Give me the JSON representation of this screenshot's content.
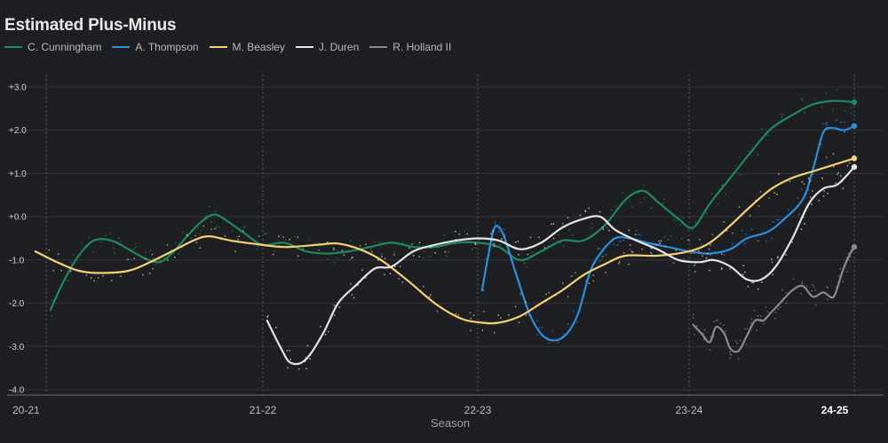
{
  "chart_data": {
    "type": "line",
    "title": "Estimated Plus-Minus",
    "xlabel": "Season",
    "ylabel": "",
    "ylim": [
      -4.0,
      3.0
    ],
    "xlim": [
      0,
      4
    ],
    "y_ticks": [
      "+3.0",
      "+2.0",
      "+1.0",
      "+0.0",
      "-1.0",
      "-2.0",
      "-3.0",
      "-4.0"
    ],
    "y_tick_values": [
      3,
      2,
      1,
      0,
      -1,
      -2,
      -3,
      -4
    ],
    "x_ticks": [
      {
        "label": "20-21",
        "value": 0
      },
      {
        "label": "21-22",
        "value": 1
      },
      {
        "label": "22-23",
        "value": 2
      },
      {
        "label": "23-24",
        "value": 3
      },
      {
        "label": "24-25",
        "value": 3.8,
        "current": true
      }
    ],
    "season_dividers": [
      0,
      1,
      2,
      3,
      3.8
    ],
    "grid": true,
    "legend_position": "top-left",
    "series": [
      {
        "name": "C. Cunningham",
        "color": "#1e8a5e",
        "points": [
          [
            0.02,
            -2.15
          ],
          [
            0.08,
            -1.5
          ],
          [
            0.15,
            -0.9
          ],
          [
            0.22,
            -0.55
          ],
          [
            0.3,
            -0.55
          ],
          [
            0.38,
            -0.75
          ],
          [
            0.45,
            -0.95
          ],
          [
            0.52,
            -1.05
          ],
          [
            0.58,
            -0.85
          ],
          [
            0.65,
            -0.45
          ],
          [
            0.72,
            -0.1
          ],
          [
            0.78,
            0.05
          ],
          [
            0.85,
            -0.15
          ],
          [
            0.92,
            -0.4
          ],
          [
            1.0,
            -0.65
          ],
          [
            1.1,
            -0.6
          ],
          [
            1.2,
            -0.8
          ],
          [
            1.3,
            -0.85
          ],
          [
            1.4,
            -0.8
          ],
          [
            1.5,
            -0.7
          ],
          [
            1.6,
            -0.6
          ],
          [
            1.7,
            -0.7
          ],
          [
            1.8,
            -0.7
          ],
          [
            1.9,
            -0.6
          ],
          [
            2.0,
            -0.6
          ],
          [
            2.1,
            -0.7
          ],
          [
            2.2,
            -1.0
          ],
          [
            2.3,
            -0.8
          ],
          [
            2.4,
            -0.55
          ],
          [
            2.5,
            -0.55
          ],
          [
            2.6,
            -0.2
          ],
          [
            2.7,
            0.4
          ],
          [
            2.78,
            0.6
          ],
          [
            2.85,
            0.35
          ],
          [
            2.95,
            -0.05
          ],
          [
            3.02,
            -0.25
          ],
          [
            3.1,
            0.3
          ],
          [
            3.2,
            0.9
          ],
          [
            3.3,
            1.5
          ],
          [
            3.4,
            2.05
          ],
          [
            3.5,
            2.35
          ],
          [
            3.6,
            2.6
          ],
          [
            3.7,
            2.68
          ],
          [
            3.8,
            2.65
          ]
        ],
        "end_dot": true
      },
      {
        "name": "A. Thompson",
        "color": "#2b8fde",
        "points": [
          [
            2.02,
            -1.7
          ],
          [
            2.05,
            -0.9
          ],
          [
            2.08,
            -0.25
          ],
          [
            2.12,
            -0.4
          ],
          [
            2.18,
            -1.3
          ],
          [
            2.25,
            -2.3
          ],
          [
            2.32,
            -2.8
          ],
          [
            2.4,
            -2.8
          ],
          [
            2.47,
            -2.3
          ],
          [
            2.53,
            -1.3
          ],
          [
            2.58,
            -0.85
          ],
          [
            2.65,
            -0.5
          ],
          [
            2.72,
            -0.5
          ],
          [
            2.8,
            -0.6
          ],
          [
            2.9,
            -0.7
          ],
          [
            3.0,
            -0.8
          ],
          [
            3.1,
            -0.85
          ],
          [
            3.2,
            -0.75
          ],
          [
            3.28,
            -0.5
          ],
          [
            3.38,
            -0.35
          ],
          [
            3.45,
            -0.1
          ],
          [
            3.55,
            0.4
          ],
          [
            3.6,
            1.1
          ],
          [
            3.65,
            1.95
          ],
          [
            3.7,
            2.05
          ],
          [
            3.75,
            2.0
          ],
          [
            3.8,
            2.1
          ]
        ],
        "end_dot": true
      },
      {
        "name": "M. Beasley",
        "color": "#f3d273",
        "points": [
          [
            -0.05,
            -0.8
          ],
          [
            0.05,
            -1.05
          ],
          [
            0.15,
            -1.25
          ],
          [
            0.25,
            -1.3
          ],
          [
            0.38,
            -1.25
          ],
          [
            0.48,
            -1.05
          ],
          [
            0.58,
            -0.8
          ],
          [
            0.68,
            -0.55
          ],
          [
            0.75,
            -0.45
          ],
          [
            0.85,
            -0.55
          ],
          [
            0.95,
            -0.62
          ],
          [
            1.1,
            -0.7
          ],
          [
            1.25,
            -0.65
          ],
          [
            1.35,
            -0.62
          ],
          [
            1.45,
            -0.75
          ],
          [
            1.55,
            -1.0
          ],
          [
            1.68,
            -1.5
          ],
          [
            1.8,
            -2.0
          ],
          [
            1.92,
            -2.35
          ],
          [
            2.02,
            -2.45
          ],
          [
            2.1,
            -2.45
          ],
          [
            2.2,
            -2.3
          ],
          [
            2.3,
            -2.0
          ],
          [
            2.4,
            -1.7
          ],
          [
            2.5,
            -1.35
          ],
          [
            2.6,
            -1.1
          ],
          [
            2.7,
            -0.9
          ],
          [
            2.85,
            -0.9
          ],
          [
            3.0,
            -0.8
          ],
          [
            3.1,
            -0.6
          ],
          [
            3.2,
            -0.2
          ],
          [
            3.3,
            0.25
          ],
          [
            3.4,
            0.65
          ],
          [
            3.5,
            0.9
          ],
          [
            3.6,
            1.05
          ],
          [
            3.7,
            1.2
          ],
          [
            3.8,
            1.35
          ]
        ],
        "end_dot": true
      },
      {
        "name": "J. Duren",
        "color": "#e4e4e4",
        "points": [
          [
            1.02,
            -2.4
          ],
          [
            1.08,
            -3.0
          ],
          [
            1.13,
            -3.38
          ],
          [
            1.2,
            -3.3
          ],
          [
            1.28,
            -2.7
          ],
          [
            1.35,
            -2.0
          ],
          [
            1.43,
            -1.6
          ],
          [
            1.52,
            -1.2
          ],
          [
            1.6,
            -1.15
          ],
          [
            1.7,
            -0.8
          ],
          [
            1.8,
            -0.65
          ],
          [
            1.9,
            -0.55
          ],
          [
            2.0,
            -0.5
          ],
          [
            2.1,
            -0.55
          ],
          [
            2.2,
            -0.75
          ],
          [
            2.3,
            -0.6
          ],
          [
            2.4,
            -0.25
          ],
          [
            2.5,
            -0.05
          ],
          [
            2.58,
            0.0
          ],
          [
            2.65,
            -0.3
          ],
          [
            2.75,
            -0.55
          ],
          [
            2.85,
            -0.75
          ],
          [
            2.95,
            -1.0
          ],
          [
            3.05,
            -1.05
          ],
          [
            3.12,
            -1.0
          ],
          [
            3.2,
            -1.15
          ],
          [
            3.28,
            -1.45
          ],
          [
            3.35,
            -1.45
          ],
          [
            3.42,
            -1.15
          ],
          [
            3.5,
            -0.5
          ],
          [
            3.58,
            0.3
          ],
          [
            3.65,
            0.65
          ],
          [
            3.72,
            0.75
          ],
          [
            3.8,
            1.15
          ]
        ],
        "end_dot": true
      },
      {
        "name": "R. Holland II",
        "color": "#8a8a8a",
        "points": [
          [
            3.02,
            -2.5
          ],
          [
            3.06,
            -2.7
          ],
          [
            3.1,
            -2.9
          ],
          [
            3.13,
            -2.55
          ],
          [
            3.17,
            -2.7
          ],
          [
            3.2,
            -3.05
          ],
          [
            3.24,
            -3.1
          ],
          [
            3.28,
            -2.75
          ],
          [
            3.32,
            -2.4
          ],
          [
            3.36,
            -2.4
          ],
          [
            3.4,
            -2.2
          ],
          [
            3.45,
            -1.95
          ],
          [
            3.5,
            -1.7
          ],
          [
            3.55,
            -1.6
          ],
          [
            3.6,
            -1.85
          ],
          [
            3.65,
            -1.75
          ],
          [
            3.7,
            -1.85
          ],
          [
            3.74,
            -1.3
          ],
          [
            3.77,
            -0.95
          ],
          [
            3.8,
            -0.7
          ]
        ],
        "end_dot": true
      }
    ]
  }
}
